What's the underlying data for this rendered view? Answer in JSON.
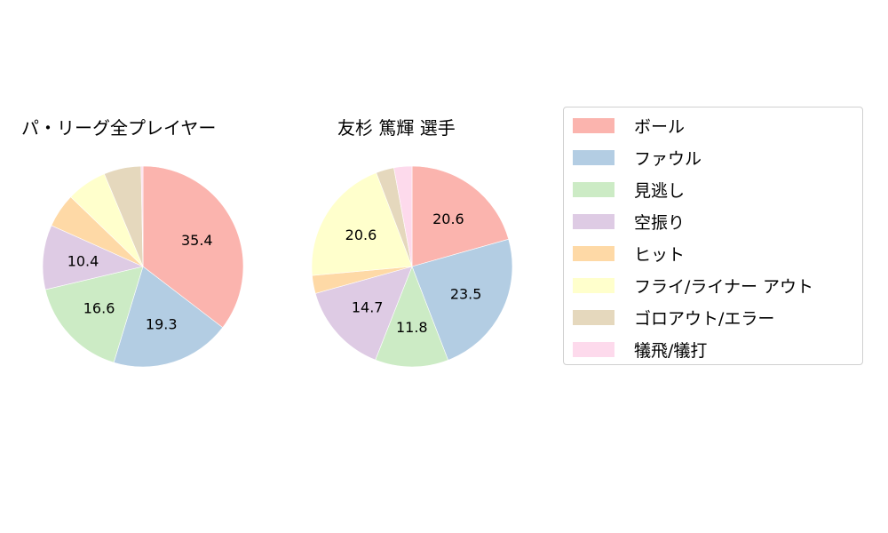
{
  "chart_data": [
    {
      "type": "pie",
      "title": "パ・リーグ全プレイヤー",
      "categories": [
        "ボール",
        "ファウル",
        "見逃し",
        "空振り",
        "ヒット",
        "フライ/ライナー アウト",
        "ゴロアウト/エラー",
        "犠飛/犠打"
      ],
      "values": [
        35.4,
        19.3,
        16.6,
        10.4,
        5.5,
        6.5,
        6.0,
        0.3
      ],
      "labels_shown": [
        "35.4",
        "19.3",
        "16.6",
        "10.4",
        "",
        "",
        "",
        ""
      ],
      "start_angle": 90,
      "direction": "clockwise"
    },
    {
      "type": "pie",
      "title": "友杉 篤輝  選手",
      "categories": [
        "ボール",
        "ファウル",
        "見逃し",
        "空振り",
        "ヒット",
        "フライ/ライナー アウト",
        "ゴロアウト/エラー",
        "犠飛/犠打"
      ],
      "values": [
        20.6,
        23.5,
        11.8,
        14.7,
        2.9,
        20.6,
        2.9,
        2.9
      ],
      "labels_shown": [
        "20.6",
        "23.5",
        "11.8",
        "14.7",
        "",
        "20.6",
        "",
        ""
      ],
      "start_angle": 90,
      "direction": "clockwise"
    }
  ],
  "charts": {
    "left_title": "パ・リーグ全プレイヤー",
    "right_title": "友杉 篤輝  選手"
  },
  "colors": [
    "#fbb4ae",
    "#b3cde3",
    "#ccebc5",
    "#decbe4",
    "#fed9a6",
    "#ffffcc",
    "#e5d8bd",
    "#fddaec"
  ],
  "legend": {
    "items": [
      {
        "label": "ボール",
        "color": "#fbb4ae"
      },
      {
        "label": "ファウル",
        "color": "#b3cde3"
      },
      {
        "label": "見逃し",
        "color": "#ccebc5"
      },
      {
        "label": "空振り",
        "color": "#decbe4"
      },
      {
        "label": "ヒット",
        "color": "#fed9a6"
      },
      {
        "label": "フライ/ライナー アウト",
        "color": "#ffffcc"
      },
      {
        "label": "ゴロアウト/エラー",
        "color": "#e5d8bd"
      },
      {
        "label": "犠飛/犠打",
        "color": "#fddaec"
      }
    ]
  }
}
